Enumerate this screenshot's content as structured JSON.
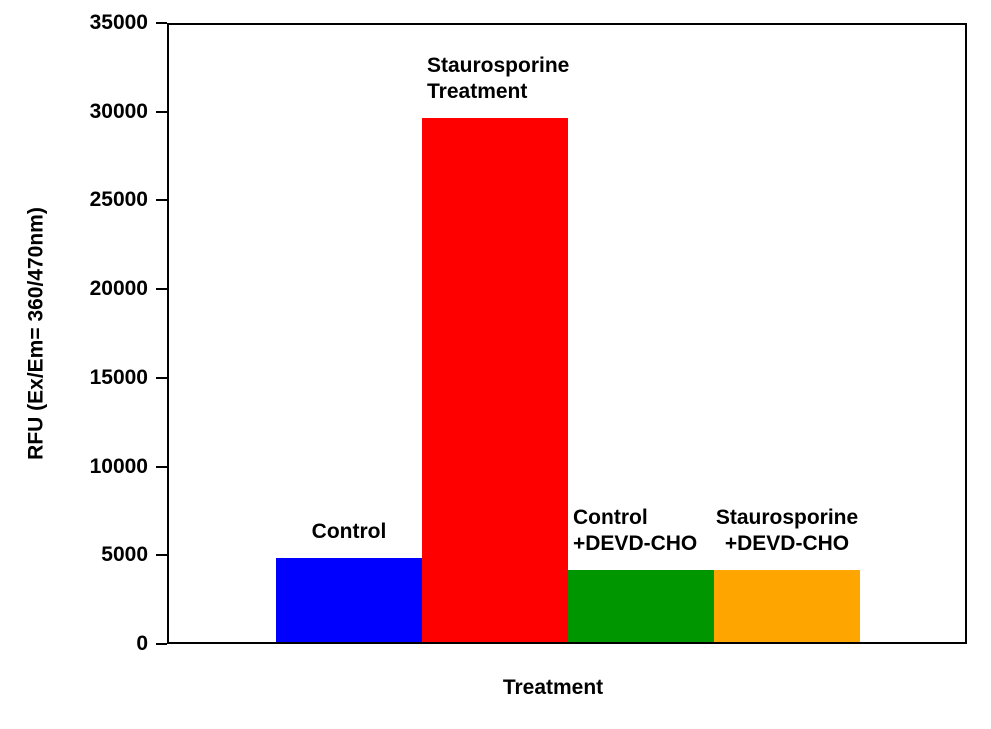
{
  "chart_data": {
    "type": "bar",
    "title": "",
    "xlabel": "Treatment",
    "ylabel": "RFU (Ex/Em= 360/470nm)",
    "ylim": [
      0,
      35000
    ],
    "ytick_interval": 5000,
    "yticks": [
      0,
      5000,
      10000,
      15000,
      20000,
      25000,
      30000,
      35000
    ],
    "grid": false,
    "legend": "none",
    "background_color": "#FFFFFF",
    "axis_color": "#000000",
    "categories": [
      "Control",
      "Staurosporine Treatment",
      "Control +DEVD-CHO",
      "Staurosporine +DEVD-CHO"
    ],
    "bars": [
      {
        "label": "Control",
        "label_lines": [
          "Control"
        ],
        "label_align": "center",
        "value": 4750,
        "color": "#0000FF"
      },
      {
        "label": "Staurosporine Treatment",
        "label_lines": [
          "Staurosporine",
          "Treatment"
        ],
        "label_align": "left",
        "value": 29700,
        "color": "#FF0000"
      },
      {
        "label": "Control +DEVD-CHO",
        "label_lines": [
          "Control",
          "+DEVD-CHO"
        ],
        "label_align": "left",
        "value": 4100,
        "color": "#009600"
      },
      {
        "label": "Staurosporine +DEVD-CHO",
        "label_lines": [
          "Staurosporine",
          "+DEVD-CHO"
        ],
        "label_align": "center",
        "value": 4100,
        "color": "#FFA500"
      }
    ]
  }
}
